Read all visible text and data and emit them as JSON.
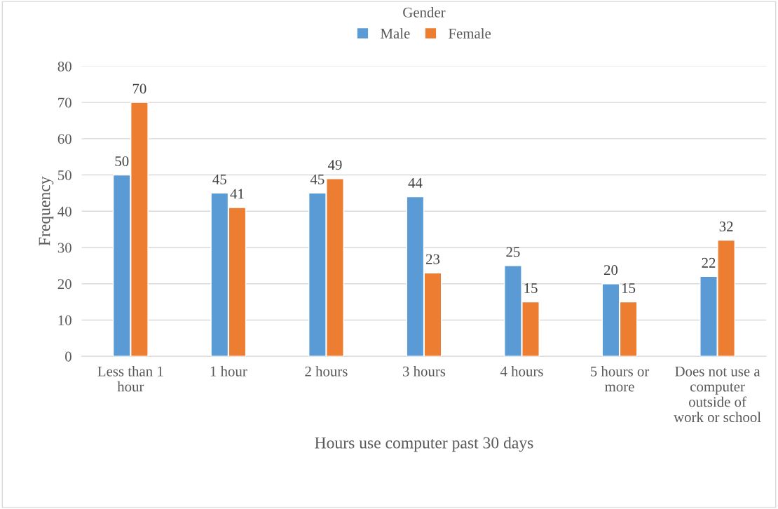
{
  "chart_data": {
    "type": "bar",
    "xlabel": "Hours use computer past 30 days",
    "ylabel": "Frequency",
    "legend_title": "Gender",
    "categories": [
      "Less than 1 hour",
      "1 hour",
      "2 hours",
      "3 hours",
      "4 hours",
      "5 hours or more",
      "Does not use a computer outside of work or school"
    ],
    "series": [
      {
        "name": "Male",
        "color": "#5b9bd5",
        "values": [
          50,
          45,
          45,
          44,
          25,
          20,
          22
        ]
      },
      {
        "name": "Female",
        "color": "#ed7d31",
        "values": [
          70,
          41,
          49,
          23,
          15,
          15,
          32
        ]
      }
    ],
    "ylim": [
      0,
      80
    ],
    "yticks": [
      0,
      10,
      20,
      30,
      40,
      50,
      60,
      70,
      80
    ],
    "grid": "y",
    "legend": "top",
    "data_labels": true
  }
}
